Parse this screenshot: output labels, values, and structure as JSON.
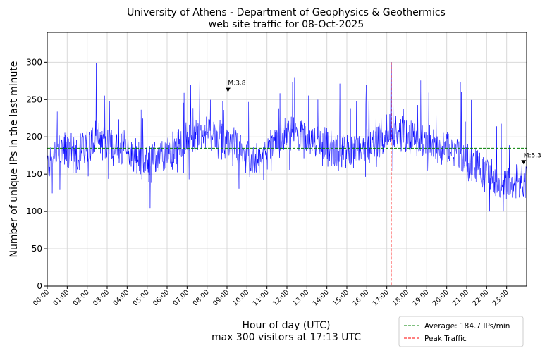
{
  "chart_data": {
    "type": "line",
    "title": "University of Athens - Department of Geophysics & Geothermics",
    "subtitle": "web site traffic for 08-Oct-2025",
    "xlabel": "Hour of day (UTC)",
    "xlabel_note": "max 300 visitors at 17:13 UTC",
    "ylabel": "Number of unique IPs in the last minute",
    "xlim": [
      0,
      24
    ],
    "ylim": [
      0,
      340
    ],
    "grid": true,
    "legend_position": "bottom-right",
    "y_ticks": [
      0,
      50,
      100,
      150,
      200,
      250,
      300
    ],
    "x_ticks": [
      "00:00",
      "01:00",
      "02:00",
      "03:00",
      "04:00",
      "05:00",
      "06:00",
      "07:00",
      "08:00",
      "09:00",
      "10:00",
      "11:00",
      "12:00",
      "13:00",
      "14:00",
      "15:00",
      "16:00",
      "17:00",
      "18:00",
      "19:00",
      "20:00",
      "21:00",
      "22:00",
      "23:00"
    ],
    "series_color": "#0000ff",
    "average": {
      "value": 184.7,
      "label": "Average: 184.7 IPs/min",
      "color": "#008000"
    },
    "peak": {
      "time_hours": 17.22,
      "value": 300,
      "time_label": "17:13",
      "label": "Peak Traffic",
      "color": "#ff0000"
    },
    "annotations": [
      {
        "text": "M:3.8",
        "time_hours": 9.05,
        "value": 262
      },
      {
        "text": "M:5.3",
        "time_hours": 23.85,
        "value": 165
      }
    ],
    "hourly_profile": [
      {
        "hour": 0.0,
        "value": 160
      },
      {
        "hour": 0.5,
        "value": 178
      },
      {
        "hour": 1.0,
        "value": 180
      },
      {
        "hour": 1.5,
        "value": 178
      },
      {
        "hour": 2.0,
        "value": 190
      },
      {
        "hour": 2.5,
        "value": 195
      },
      {
        "hour": 3.0,
        "value": 190
      },
      {
        "hour": 3.5,
        "value": 185
      },
      {
        "hour": 4.0,
        "value": 180
      },
      {
        "hour": 4.5,
        "value": 170
      },
      {
        "hour": 5.0,
        "value": 165
      },
      {
        "hour": 5.5,
        "value": 170
      },
      {
        "hour": 6.0,
        "value": 175
      },
      {
        "hour": 6.5,
        "value": 185
      },
      {
        "hour": 7.0,
        "value": 195
      },
      {
        "hour": 7.5,
        "value": 200
      },
      {
        "hour": 8.0,
        "value": 205
      },
      {
        "hour": 8.5,
        "value": 200
      },
      {
        "hour": 9.0,
        "value": 190
      },
      {
        "hour": 9.5,
        "value": 185
      },
      {
        "hour": 10.0,
        "value": 170
      },
      {
        "hour": 10.5,
        "value": 165
      },
      {
        "hour": 11.0,
        "value": 180
      },
      {
        "hour": 11.5,
        "value": 195
      },
      {
        "hour": 12.0,
        "value": 205
      },
      {
        "hour": 12.5,
        "value": 200
      },
      {
        "hour": 13.0,
        "value": 195
      },
      {
        "hour": 13.5,
        "value": 190
      },
      {
        "hour": 14.0,
        "value": 185
      },
      {
        "hour": 14.5,
        "value": 180
      },
      {
        "hour": 15.0,
        "value": 182
      },
      {
        "hour": 15.5,
        "value": 185
      },
      {
        "hour": 16.0,
        "value": 190
      },
      {
        "hour": 16.5,
        "value": 195
      },
      {
        "hour": 17.0,
        "value": 205
      },
      {
        "hour": 17.5,
        "value": 210
      },
      {
        "hour": 18.0,
        "value": 200
      },
      {
        "hour": 18.5,
        "value": 195
      },
      {
        "hour": 19.0,
        "value": 190
      },
      {
        "hour": 19.5,
        "value": 188
      },
      {
        "hour": 20.0,
        "value": 185
      },
      {
        "hour": 20.5,
        "value": 180
      },
      {
        "hour": 21.0,
        "value": 170
      },
      {
        "hour": 21.5,
        "value": 160
      },
      {
        "hour": 22.0,
        "value": 152
      },
      {
        "hour": 22.5,
        "value": 145
      },
      {
        "hour": 23.0,
        "value": 140
      },
      {
        "hour": 23.5,
        "value": 138
      },
      {
        "hour": 24.0,
        "value": 132
      }
    ]
  }
}
